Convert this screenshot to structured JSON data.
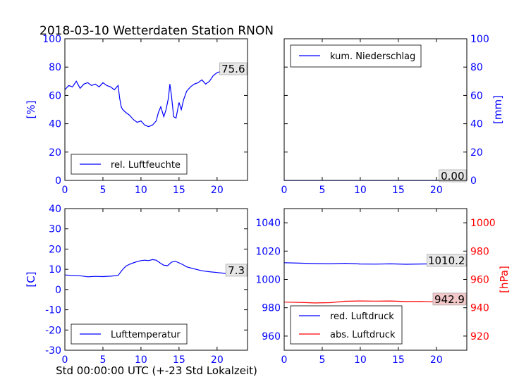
{
  "title": "2018-03-10 Wetterdaten Station RNON",
  "xlabel": "Std 00:00:00 UTC (+-23 Std Lokalzeit)",
  "colors": {
    "blue": "#0000ff",
    "red": "#ff0000",
    "label_bg": "#e6e6e6",
    "label_bg_red": "#f2c8c8"
  },
  "chart_data": [
    {
      "type": "line",
      "panel": "top-left",
      "ylabel": "[%]",
      "xlim": [
        0,
        24
      ],
      "ylim": [
        0,
        100
      ],
      "xticks": [
        0,
        5,
        10,
        15,
        20
      ],
      "yticks": [
        0,
        20,
        40,
        60,
        80,
        100
      ],
      "legend": "lower-left",
      "last_value_label": "75.6",
      "series": [
        {
          "name": "rel. Luftfeuchte",
          "color": "#0000ff",
          "x": [
            0,
            0.5,
            1,
            1.5,
            2,
            2.5,
            3,
            3.5,
            4,
            4.5,
            5,
            5.5,
            6,
            6.5,
            7,
            7.2,
            7.4,
            7.6,
            8,
            8.5,
            9,
            9.5,
            10,
            10.5,
            11,
            11.5,
            12,
            12.3,
            12.6,
            13,
            13.3,
            13.6,
            13.8,
            14,
            14.3,
            14.6,
            15,
            15.3,
            15.6,
            16,
            16.5,
            17,
            17.5,
            18,
            18.5,
            19,
            19.5,
            20,
            20.5,
            21,
            21.5,
            22,
            22.5,
            23,
            23.5,
            24
          ],
          "y": [
            64,
            67,
            66,
            70,
            65,
            68,
            69,
            67,
            68,
            66,
            69,
            67,
            66,
            64,
            67,
            58,
            52,
            50,
            48,
            46,
            43,
            41,
            42,
            39,
            38,
            39,
            42,
            48,
            52,
            45,
            50,
            58,
            68,
            60,
            45,
            44,
            55,
            50,
            57,
            63,
            66,
            68,
            69,
            71,
            68,
            70,
            74,
            76,
            77,
            77,
            76,
            77,
            76,
            77,
            76,
            75.6
          ]
        }
      ]
    },
    {
      "type": "line",
      "panel": "top-right",
      "ylabel": "[mm]",
      "xlim": [
        0,
        24
      ],
      "ylim": [
        0,
        100
      ],
      "xticks": [
        0,
        5,
        10,
        15,
        20
      ],
      "yticks": [
        0,
        20,
        40,
        60,
        80,
        100
      ],
      "legend": "upper-left",
      "last_value_label": "0.00",
      "series": [
        {
          "name": "kum. Niederschlag",
          "color": "#0000ff",
          "x": [
            0,
            24
          ],
          "y": [
            0,
            0
          ]
        }
      ]
    },
    {
      "type": "line",
      "panel": "bottom-left",
      "ylabel": "[C]",
      "xlim": [
        0,
        24
      ],
      "ylim": [
        -30,
        40
      ],
      "xticks": [
        0,
        5,
        10,
        15,
        20
      ],
      "yticks": [
        -30,
        -20,
        -10,
        0,
        10,
        20,
        30,
        40
      ],
      "legend": "lower-left",
      "last_value_label": "7.3",
      "series": [
        {
          "name": "Lufttemperatur",
          "color": "#0000ff",
          "x": [
            0,
            1,
            2,
            3,
            4,
            5,
            6,
            7,
            7.5,
            8,
            8.5,
            9,
            9.5,
            10,
            10.5,
            11,
            11.5,
            12,
            12.5,
            13,
            13.5,
            14,
            14.5,
            15,
            15.5,
            16,
            17,
            18,
            19,
            20,
            21,
            22,
            23,
            24
          ],
          "y": [
            7.2,
            7.0,
            6.8,
            6.3,
            6.5,
            6.4,
            6.6,
            7.0,
            9.5,
            11.5,
            12.5,
            13.2,
            13.8,
            14.3,
            14.5,
            14.3,
            14.8,
            14.5,
            13.2,
            12.0,
            11.8,
            13.5,
            14.0,
            13.2,
            12.3,
            11.2,
            10.2,
            9.3,
            8.8,
            8.4,
            8.0,
            7.7,
            7.4,
            7.3
          ]
        }
      ]
    },
    {
      "type": "line",
      "panel": "bottom-right",
      "ylabel_right": "[hPa]",
      "xlim": [
        0,
        24
      ],
      "ylim": [
        950,
        1050
      ],
      "ylim_right": [
        910,
        1010
      ],
      "xticks": [
        0,
        5,
        10,
        15,
        20
      ],
      "yticks": [
        960,
        980,
        1000,
        1020,
        1040
      ],
      "yticks_right": [
        920,
        940,
        960,
        980,
        1000
      ],
      "legend": "lower-left",
      "series": [
        {
          "name": "red. Luftdruck",
          "color": "#0000ff",
          "axis": "left",
          "last_value_label": "1010.2",
          "x": [
            0,
            2,
            4,
            6,
            8,
            10,
            12,
            14,
            16,
            18,
            20,
            22,
            24
          ],
          "y": [
            1011.8,
            1011.5,
            1011.2,
            1011.0,
            1011.4,
            1010.9,
            1010.8,
            1011.0,
            1010.7,
            1010.9,
            1011.0,
            1010.8,
            1010.2
          ]
        },
        {
          "name": "abs. Luftdruck",
          "color": "#ff0000",
          "axis": "right",
          "last_value_label": "942.9",
          "x": [
            0,
            2,
            4,
            6,
            8,
            10,
            12,
            14,
            16,
            18,
            20,
            22,
            24
          ],
          "y": [
            944.0,
            943.8,
            943.4,
            943.6,
            944.6,
            944.8,
            944.7,
            944.8,
            944.4,
            944.5,
            944.2,
            943.6,
            942.9
          ]
        }
      ]
    }
  ]
}
